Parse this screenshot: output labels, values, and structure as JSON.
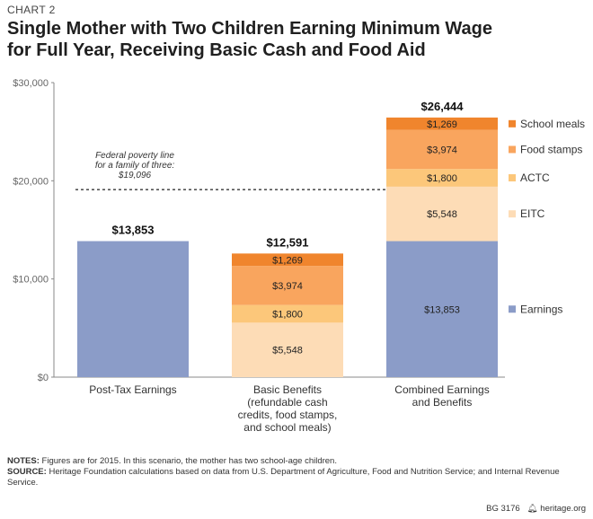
{
  "chart_label": "CHART 2",
  "title_line1": "Single Mother with Two Children Earning Minimum Wage",
  "title_line2": "for Full Year, Receiving Basic Cash and Food Aid",
  "notes_label": "NOTES:",
  "notes_text": "Figures are for 2015. In this scenario, the mother has two school-age children.",
  "source_label": "SOURCE:",
  "source_text": "Heritage Foundation calculations based on data from U.S. Department of Agriculture, Food and Nutrition Service; and Internal Revenue Service.",
  "footer_id": "BG 3176",
  "footer_site": "heritage.org",
  "colors": {
    "earnings": "#8b9cc8",
    "eitc": "#fddcb6",
    "actc": "#fcc77a",
    "food_stamps": "#f9a55e",
    "school_meals": "#f0852d",
    "axis": "#888888",
    "poverty_line": "#555555"
  },
  "chart_data": {
    "type": "bar",
    "stacked": true,
    "ylim": [
      0,
      30000
    ],
    "y_ticks": [
      0,
      10000,
      20000,
      30000
    ],
    "y_tick_labels": [
      "$0",
      "$10,000",
      "$20,000",
      "$30,000"
    ],
    "categories": [
      [
        "Post-Tax Earnings"
      ],
      [
        "Basic Benefits",
        "(refundable cash",
        "credits, food stamps,",
        "and school meals)"
      ],
      [
        "Combined Earnings",
        "and Benefits"
      ]
    ],
    "totals": [
      13853,
      12591,
      26444
    ],
    "total_labels": [
      "$13,853",
      "$12,591",
      "$26,444"
    ],
    "series": [
      {
        "name": "Earnings",
        "color_key": "earnings",
        "values": [
          13853,
          0,
          13853
        ],
        "labels": [
          "",
          "",
          "$13,853"
        ]
      },
      {
        "name": "EITC",
        "color_key": "eitc",
        "values": [
          0,
          5548,
          5548
        ],
        "labels": [
          "",
          "$5,548",
          "$5,548"
        ]
      },
      {
        "name": "ACTC",
        "color_key": "actc",
        "values": [
          0,
          1800,
          1800
        ],
        "labels": [
          "",
          "$1,800",
          "$1,800"
        ]
      },
      {
        "name": "Food stamps",
        "color_key": "food_stamps",
        "values": [
          0,
          3974,
          3974
        ],
        "labels": [
          "",
          "$3,974",
          "$3,974"
        ]
      },
      {
        "name": "School meals",
        "color_key": "school_meals",
        "values": [
          0,
          1269,
          1269
        ],
        "labels": [
          "",
          "$1,269",
          "$1,269"
        ]
      }
    ],
    "reference_line": {
      "value": 19096,
      "label": [
        "Federal poverty line",
        "for a family of three:",
        "$19,096"
      ]
    },
    "legend_placement": "right",
    "grid": false
  }
}
